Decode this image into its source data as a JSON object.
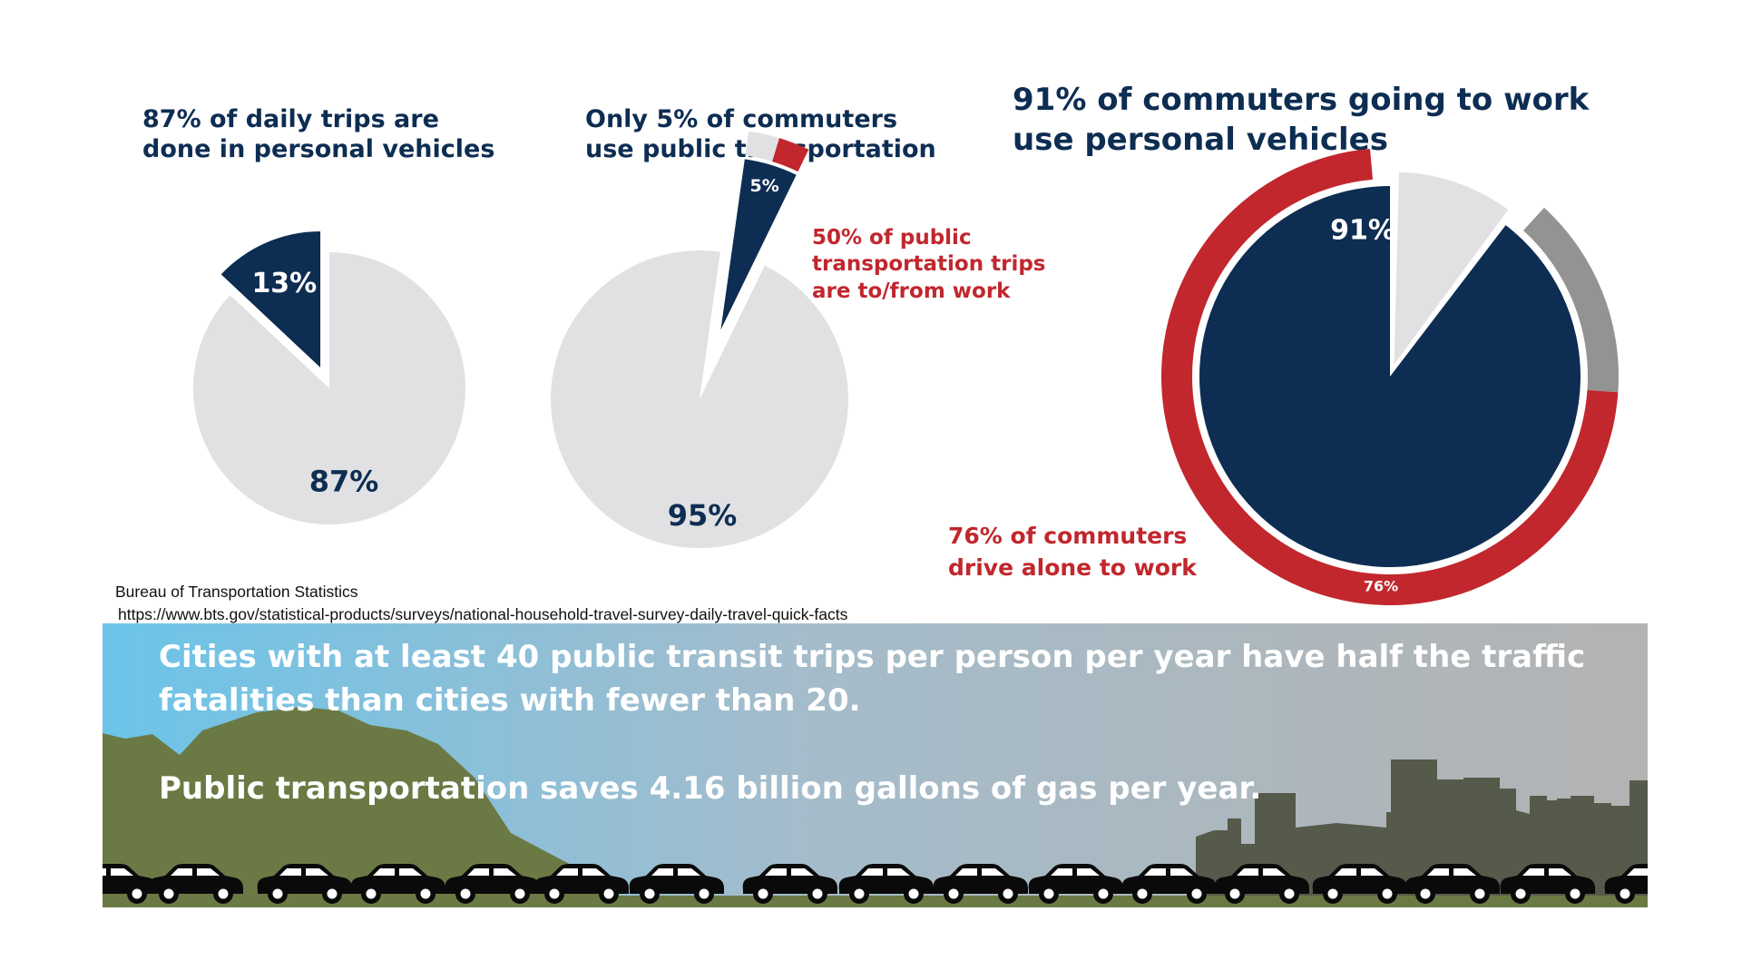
{
  "chart_data": [
    {
      "type": "pie",
      "title": [
        "87% of daily trips are",
        "done in personal vehicles"
      ],
      "slices": [
        {
          "label": "13%",
          "value": 13,
          "color": "#0d2d52",
          "exploded": true
        },
        {
          "label": "87%",
          "value": 87,
          "color": "#e1e1e3"
        }
      ]
    },
    {
      "type": "pie",
      "title": [
        "Only 5% of commuters",
        "use public transportation"
      ],
      "slices": [
        {
          "label": "5%",
          "value": 5,
          "color": "#0d2d52",
          "exploded": true,
          "sub_split": [
            {
              "value": 50,
              "color": "#c1272d"
            },
            {
              "value": 50,
              "color": "#e1e1e3"
            }
          ]
        },
        {
          "label": "95%",
          "value": 95,
          "color": "#e1e1e3"
        }
      ],
      "annotation": [
        "50% of public",
        "transportation trips",
        "are to/from work"
      ]
    },
    {
      "type": "pie",
      "title": [
        "91% of commuters going to work",
        "use personal vehicles"
      ],
      "slices": [
        {
          "label": "91%",
          "value": 91,
          "color": "#0d2d52"
        },
        {
          "label": "",
          "value": 9,
          "color": "#e1e1e3",
          "exploded": true
        }
      ],
      "outer_ring": [
        {
          "label": "76%",
          "value": 76,
          "color": "#c1272d"
        },
        {
          "label": "",
          "value": 15,
          "color": "#939393"
        }
      ],
      "annotation": [
        "76% of commuters",
        "drive alone to work"
      ]
    }
  ],
  "source": {
    "name": "Bureau of Transportation Statistics",
    "url": "https://www.bts.gov/statistical-products/surveys/national-household-travel-survey-daily-travel-quick-facts"
  },
  "banner": {
    "line1": "Cities with at least 40 public transit trips per person per year have half the traffic",
    "line2": "fatalities than cities with fewer than 20.",
    "line3": "Public transportation saves 4.16 billion gallons of gas per year."
  },
  "colors": {
    "navy": "#0d2d52",
    "red": "#c1272d",
    "light_gray": "#e1e1e3",
    "mid_gray": "#939393",
    "sky": "#6cc4e9",
    "hill": "#6b7a45",
    "city": "#555a4a"
  }
}
